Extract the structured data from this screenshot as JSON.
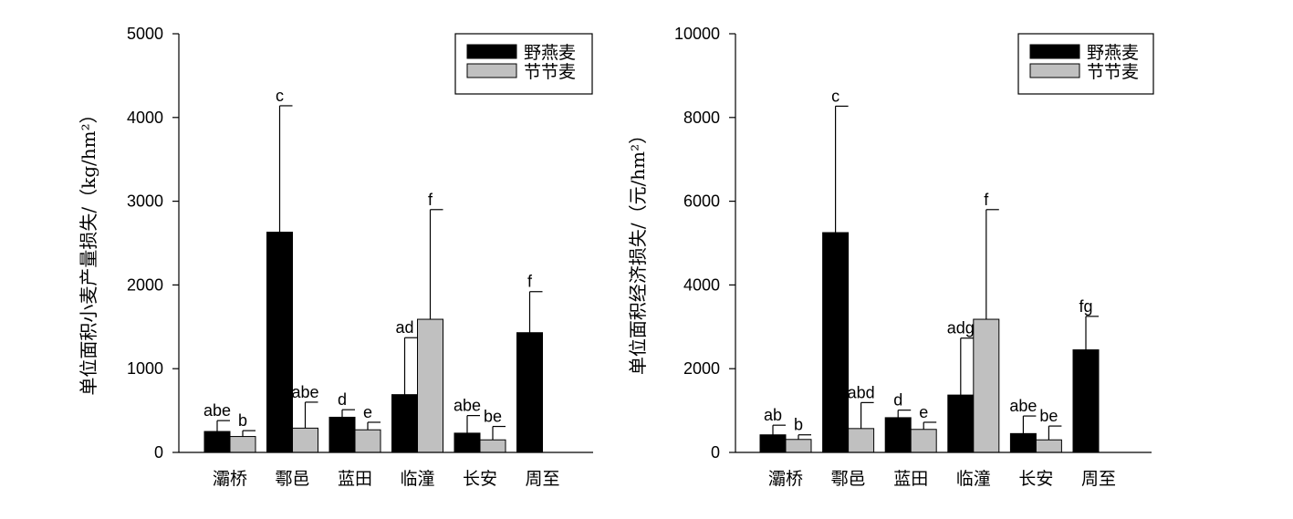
{
  "chart_data": [
    {
      "type": "bar",
      "categories": [
        "灞桥",
        "鄠邑",
        "蓝田",
        "临潼",
        "长安",
        "周至"
      ],
      "ylabel": "单位面积小麦产量损失/（kg/hm²）",
      "ylim": [
        0,
        5000
      ],
      "yticks": [
        "0",
        "1000",
        "2000",
        "3000",
        "4000",
        "5000"
      ],
      "series": [
        {
          "name": "野燕麦",
          "color": "#000000",
          "values": [
            250,
            2630,
            420,
            690,
            230,
            1430
          ],
          "errors": [
            130,
            1510,
            90,
            680,
            210,
            490
          ],
          "labels": [
            "abe",
            "c",
            "d",
            "ad",
            "abe",
            "f"
          ]
        },
        {
          "name": "节节麦",
          "color": "#c0c0c0",
          "values": [
            190,
            290,
            270,
            1590,
            150,
            null
          ],
          "errors": [
            70,
            310,
            90,
            1310,
            160,
            null
          ],
          "labels": [
            "b",
            "abe",
            "e",
            "f",
            "be",
            ""
          ]
        }
      ],
      "legend_position": "top-right",
      "grid": false
    },
    {
      "type": "bar",
      "categories": [
        "灞桥",
        "鄠邑",
        "蓝田",
        "临潼",
        "长安",
        "周至"
      ],
      "ylabel": "单位面积经济损失/（元/hm²）",
      "ylim": [
        0,
        10000
      ],
      "yticks": [
        "0",
        "2000",
        "4000",
        "6000",
        "8000",
        "10000"
      ],
      "series": [
        {
          "name": "野燕麦",
          "color": "#000000",
          "values": [
            420,
            5250,
            830,
            1370,
            450,
            2450
          ],
          "errors": [
            230,
            3020,
            180,
            1360,
            420,
            800
          ],
          "labels": [
            "ab",
            "c",
            "d",
            "adg",
            "abe",
            "fg"
          ]
        },
        {
          "name": "节节麦",
          "color": "#c0c0c0",
          "values": [
            310,
            570,
            550,
            3180,
            300,
            null
          ],
          "errors": [
            110,
            620,
            170,
            2620,
            330,
            null
          ],
          "labels": [
            "b",
            "abd",
            "e",
            "f",
            "be",
            ""
          ]
        }
      ],
      "legend_position": "top-right",
      "grid": false
    }
  ]
}
